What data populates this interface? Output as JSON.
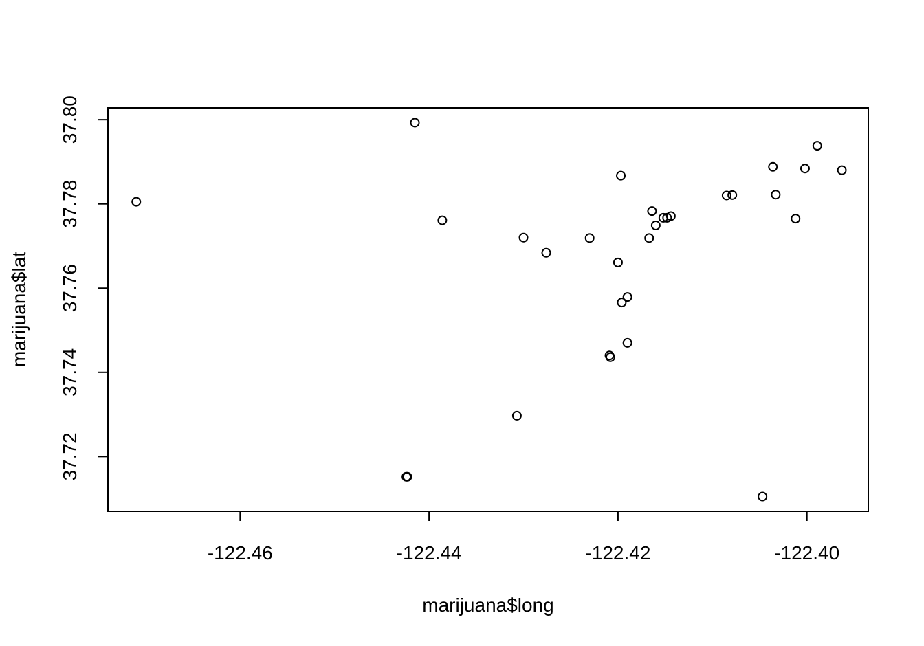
{
  "chart_data": {
    "type": "scatter",
    "title": "",
    "xlabel": "marijuana$long",
    "ylabel": "marijuana$lat",
    "xlim": [
      -122.474,
      -122.3935
    ],
    "ylim": [
      37.707,
      37.8028
    ],
    "xticks": [
      -122.46,
      -122.44,
      -122.42,
      -122.4
    ],
    "xtick_labels": [
      "-122.46",
      "-122.44",
      "-122.42",
      "-122.40"
    ],
    "yticks": [
      37.72,
      37.74,
      37.76,
      37.78,
      37.8
    ],
    "ytick_labels": [
      "37.72",
      "37.74",
      "37.76",
      "37.78",
      "37.80"
    ],
    "grid": false,
    "marker": "open-circle",
    "color": "#000000",
    "points": [
      {
        "x": -122.471,
        "y": 37.7805
      },
      {
        "x": -122.4415,
        "y": 37.7993
      },
      {
        "x": -122.4386,
        "y": 37.7761
      },
      {
        "x": -122.4423,
        "y": 37.7152
      },
      {
        "x": -122.4424,
        "y": 37.7152
      },
      {
        "x": -122.43,
        "y": 37.772
      },
      {
        "x": -122.4307,
        "y": 37.7297
      },
      {
        "x": -122.4276,
        "y": 37.7684
      },
      {
        "x": -122.423,
        "y": 37.7719
      },
      {
        "x": -122.4209,
        "y": 37.744
      },
      {
        "x": -122.4208,
        "y": 37.7436
      },
      {
        "x": -122.42,
        "y": 37.7661
      },
      {
        "x": -122.4197,
        "y": 37.7867
      },
      {
        "x": -122.4196,
        "y": 37.7566
      },
      {
        "x": -122.419,
        "y": 37.7579
      },
      {
        "x": -122.419,
        "y": 37.747
      },
      {
        "x": -122.4167,
        "y": 37.7719
      },
      {
        "x": -122.4164,
        "y": 37.7783
      },
      {
        "x": -122.416,
        "y": 37.7749
      },
      {
        "x": -122.4152,
        "y": 37.7767
      },
      {
        "x": -122.4148,
        "y": 37.7767
      },
      {
        "x": -122.4144,
        "y": 37.7771
      },
      {
        "x": -122.4085,
        "y": 37.782
      },
      {
        "x": -122.4079,
        "y": 37.7821
      },
      {
        "x": -122.4047,
        "y": 37.7105
      },
      {
        "x": -122.4036,
        "y": 37.7888
      },
      {
        "x": -122.4033,
        "y": 37.7822
      },
      {
        "x": -122.4012,
        "y": 37.7765
      },
      {
        "x": -122.4002,
        "y": 37.7884
      },
      {
        "x": -122.3989,
        "y": 37.7938
      },
      {
        "x": -122.3963,
        "y": 37.788
      }
    ]
  }
}
